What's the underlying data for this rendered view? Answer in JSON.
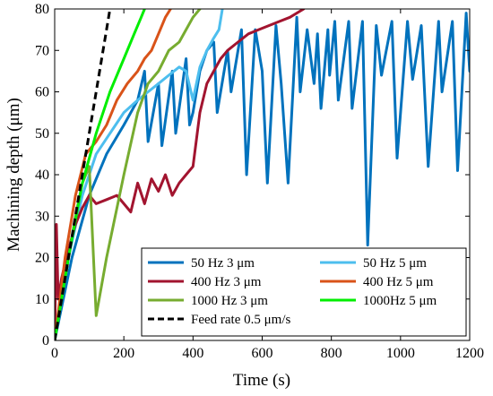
{
  "chart_data": {
    "type": "line",
    "xlabel": "Time (s)",
    "ylabel": "Machining depth (μm)",
    "xlim": [
      0,
      1200
    ],
    "ylim": [
      0,
      80
    ],
    "xticks": [
      0,
      200,
      400,
      600,
      800,
      1000,
      1200
    ],
    "yticks": [
      0,
      10,
      20,
      30,
      40,
      50,
      60,
      70,
      80
    ],
    "grid": false,
    "legend_position": "bottom-right",
    "series": [
      {
        "name": "50 Hz 3 μm",
        "color": "#0072BD",
        "style": "solid",
        "points": [
          [
            0,
            0
          ],
          [
            50,
            20
          ],
          [
            100,
            35
          ],
          [
            150,
            45
          ],
          [
            200,
            52
          ],
          [
            240,
            58
          ],
          [
            260,
            65
          ],
          [
            270,
            48
          ],
          [
            300,
            62
          ],
          [
            310,
            47
          ],
          [
            340,
            65
          ],
          [
            350,
            50
          ],
          [
            380,
            68
          ],
          [
            390,
            52
          ],
          [
            400,
            55
          ],
          [
            420,
            65
          ],
          [
            440,
            70
          ],
          [
            460,
            72
          ],
          [
            470,
            55
          ],
          [
            500,
            70
          ],
          [
            510,
            60
          ],
          [
            540,
            75
          ],
          [
            555,
            40
          ],
          [
            580,
            75
          ],
          [
            600,
            65
          ],
          [
            615,
            38
          ],
          [
            640,
            76
          ],
          [
            655,
            62
          ],
          [
            675,
            38
          ],
          [
            700,
            78
          ],
          [
            710,
            60
          ],
          [
            730,
            75
          ],
          [
            750,
            62
          ],
          [
            760,
            74
          ],
          [
            770,
            56
          ],
          [
            790,
            75
          ],
          [
            795,
            64
          ],
          [
            810,
            77
          ],
          [
            820,
            58
          ],
          [
            850,
            77
          ],
          [
            860,
            56
          ],
          [
            890,
            77
          ],
          [
            905,
            23
          ],
          [
            930,
            76
          ],
          [
            945,
            64
          ],
          [
            975,
            77
          ],
          [
            990,
            44
          ],
          [
            1020,
            77
          ],
          [
            1035,
            63
          ],
          [
            1060,
            76
          ],
          [
            1080,
            42
          ],
          [
            1110,
            77
          ],
          [
            1120,
            60
          ],
          [
            1150,
            77
          ],
          [
            1165,
            41
          ],
          [
            1190,
            79
          ],
          [
            1200,
            65
          ]
        ]
      },
      {
        "name": "50 Hz 5 μm",
        "color": "#4DBEEE",
        "style": "solid",
        "points": [
          [
            0,
            0
          ],
          [
            40,
            20
          ],
          [
            80,
            35
          ],
          [
            120,
            45
          ],
          [
            160,
            50
          ],
          [
            200,
            55
          ],
          [
            240,
            58
          ],
          [
            270,
            60
          ],
          [
            300,
            62
          ],
          [
            330,
            64
          ],
          [
            360,
            66
          ],
          [
            380,
            65
          ],
          [
            400,
            58
          ],
          [
            420,
            66
          ],
          [
            440,
            70
          ],
          [
            460,
            73
          ],
          [
            475,
            75
          ],
          [
            485,
            80
          ]
        ]
      },
      {
        "name": "400 Hz 3 μm",
        "color": "#A2142F",
        "style": "solid",
        "points": [
          [
            0,
            0
          ],
          [
            5,
            28
          ],
          [
            10,
            10
          ],
          [
            20,
            15
          ],
          [
            40,
            22
          ],
          [
            60,
            28
          ],
          [
            80,
            32
          ],
          [
            100,
            35
          ],
          [
            120,
            33
          ],
          [
            150,
            34
          ],
          [
            180,
            35
          ],
          [
            200,
            33
          ],
          [
            220,
            31
          ],
          [
            240,
            38
          ],
          [
            260,
            33
          ],
          [
            280,
            39
          ],
          [
            300,
            36
          ],
          [
            320,
            40
          ],
          [
            340,
            35
          ],
          [
            360,
            38
          ],
          [
            380,
            40
          ],
          [
            400,
            42
          ],
          [
            420,
            55
          ],
          [
            440,
            62
          ],
          [
            460,
            65
          ],
          [
            480,
            68
          ],
          [
            500,
            70
          ],
          [
            530,
            72
          ],
          [
            560,
            74
          ],
          [
            590,
            75
          ],
          [
            620,
            76
          ],
          [
            650,
            77
          ],
          [
            680,
            78
          ],
          [
            700,
            79
          ],
          [
            720,
            80
          ]
        ]
      },
      {
        "name": "400 Hz 5 μm",
        "color": "#D95319",
        "style": "solid",
        "points": [
          [
            0,
            0
          ],
          [
            30,
            20
          ],
          [
            60,
            35
          ],
          [
            90,
            45
          ],
          [
            120,
            48
          ],
          [
            150,
            52
          ],
          [
            180,
            58
          ],
          [
            210,
            62
          ],
          [
            240,
            65
          ],
          [
            260,
            68
          ],
          [
            280,
            70
          ],
          [
            300,
            74
          ],
          [
            320,
            78
          ],
          [
            335,
            80
          ]
        ]
      },
      {
        "name": "1000 Hz 3 μm",
        "color": "#77AC30",
        "style": "solid",
        "points": [
          [
            0,
            0
          ],
          [
            30,
            15
          ],
          [
            60,
            30
          ],
          [
            80,
            38
          ],
          [
            100,
            42
          ],
          [
            120,
            6
          ],
          [
            150,
            20
          ],
          [
            200,
            40
          ],
          [
            240,
            55
          ],
          [
            270,
            62
          ],
          [
            300,
            65
          ],
          [
            330,
            70
          ],
          [
            360,
            72
          ],
          [
            380,
            75
          ],
          [
            400,
            78
          ],
          [
            420,
            80
          ]
        ]
      },
      {
        "name": "1000Hz 5 μm",
        "color": "#00EE00",
        "style": "solid",
        "points": [
          [
            0,
            0
          ],
          [
            40,
            20
          ],
          [
            80,
            38
          ],
          [
            120,
            50
          ],
          [
            160,
            60
          ],
          [
            200,
            68
          ],
          [
            230,
            74
          ],
          [
            250,
            78
          ],
          [
            260,
            80
          ]
        ]
      },
      {
        "name": "Feed rate 0.5 μm/s",
        "color": "#000000",
        "style": "dashed",
        "points": [
          [
            0,
            0
          ],
          [
            160,
            80
          ]
        ]
      }
    ]
  }
}
